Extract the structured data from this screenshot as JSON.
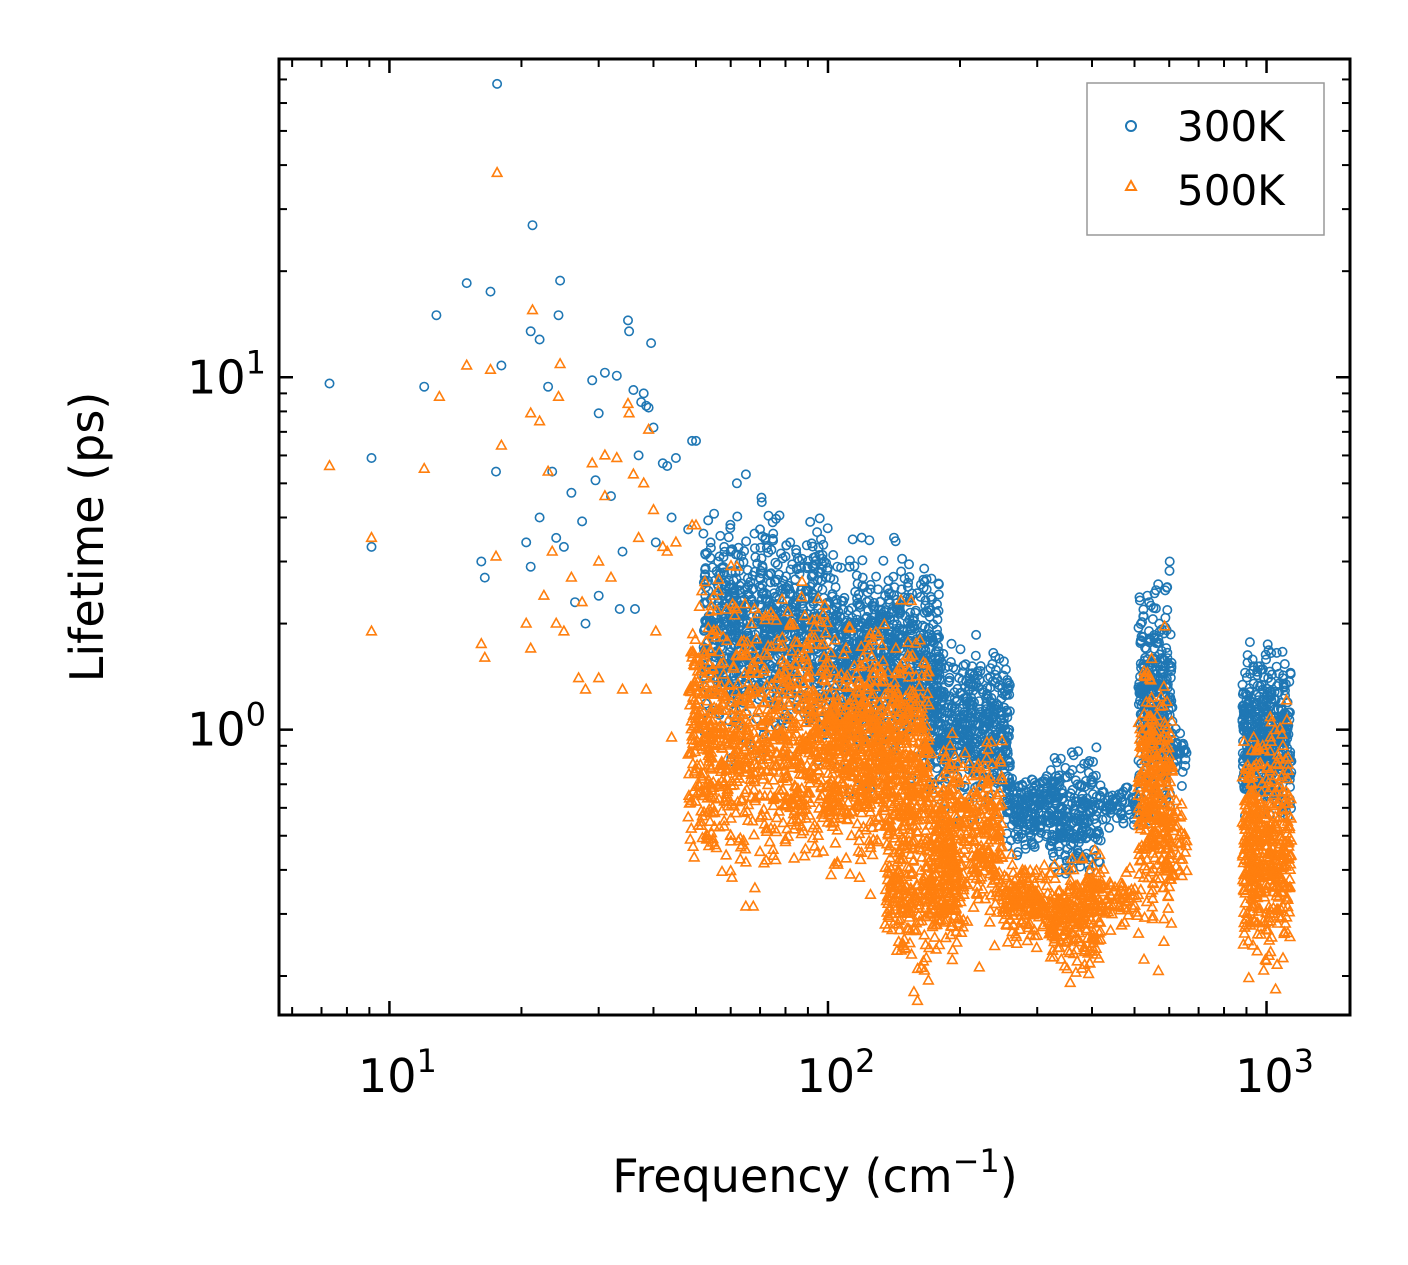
{
  "chart_data": {
    "type": "scatter",
    "xscale": "log",
    "yscale": "log",
    "xlim": [
      5.6,
      1550
    ],
    "ylim": [
      0.155,
      80
    ],
    "xlabel": {
      "base": "Frequency (cm",
      "sup": "−1",
      "tail": ")"
    },
    "ylabel": "Lifetime (ps)",
    "x_ticks": [
      {
        "value": 10,
        "base": "10",
        "exp": "1"
      },
      {
        "value": 100,
        "base": "10",
        "exp": "2"
      },
      {
        "value": 1000,
        "base": "10",
        "exp": "3"
      }
    ],
    "y_ticks": [
      {
        "value": 1,
        "base": "10",
        "exp": "0"
      },
      {
        "value": 10,
        "base": "10",
        "exp": "1"
      }
    ],
    "legend": {
      "position": "top-right"
    },
    "series": [
      {
        "name": "300K",
        "marker": "circle-open",
        "color": "#1f77b4",
        "outlier_points": [
          [
            7.3,
            9.6
          ],
          [
            9.1,
            5.9
          ],
          [
            9.1,
            3.3
          ],
          [
            12,
            9.4
          ],
          [
            12.8,
            15
          ],
          [
            15,
            18.5
          ],
          [
            16.2,
            3.0
          ],
          [
            16.5,
            2.7
          ],
          [
            17,
            17.5
          ],
          [
            17.5,
            5.4
          ],
          [
            17.6,
            68
          ],
          [
            18,
            10.8
          ],
          [
            20.5,
            3.4
          ],
          [
            21,
            13.5
          ],
          [
            21,
            2.9
          ],
          [
            21.2,
            27
          ],
          [
            22,
            12.8
          ],
          [
            22,
            4.0
          ],
          [
            23,
            9.4
          ],
          [
            23.5,
            5.4
          ],
          [
            24,
            3.5
          ],
          [
            24.3,
            15
          ],
          [
            24.5,
            18.8
          ],
          [
            25,
            3.3
          ],
          [
            26,
            4.7
          ],
          [
            26.5,
            2.3
          ],
          [
            27.5,
            3.9
          ],
          [
            28,
            2.0
          ],
          [
            29,
            9.8
          ],
          [
            29.5,
            5.1
          ],
          [
            30,
            2.4
          ],
          [
            30,
            7.9
          ],
          [
            31,
            10.3
          ],
          [
            32,
            4.6
          ],
          [
            33,
            10.1
          ],
          [
            33.5,
            2.2
          ],
          [
            34,
            3.2
          ],
          [
            35,
            14.5
          ],
          [
            35.2,
            13.5
          ],
          [
            36,
            9.2
          ],
          [
            36.3,
            2.2
          ],
          [
            37,
            6.0
          ],
          [
            37.5,
            8.5
          ],
          [
            38,
            9.0
          ],
          [
            38.5,
            8.3
          ],
          [
            39,
            8.2
          ],
          [
            39.5,
            12.5
          ],
          [
            40,
            7.2
          ],
          [
            40.5,
            3.4
          ],
          [
            42,
            5.7
          ],
          [
            43,
            5.6
          ],
          [
            44,
            4.0
          ],
          [
            45,
            5.9
          ],
          [
            48,
            3.7
          ],
          [
            49,
            6.6
          ],
          [
            50,
            6.6
          ],
          [
            52,
            3.6
          ],
          [
            54,
            3.4
          ],
          [
            55,
            4.1
          ],
          [
            58,
            3.3
          ],
          [
            60,
            3.2
          ],
          [
            62,
            5.0
          ],
          [
            65,
            5.3
          ],
          [
            68,
            3.6
          ],
          [
            70,
            3.7
          ],
          [
            72,
            3.5
          ],
          [
            75,
            3.6
          ],
          [
            80,
            3.1
          ],
          [
            82,
            3.4
          ],
          [
            90,
            2.9
          ],
          [
            95,
            2.8
          ],
          [
            98,
            3.0
          ],
          [
            105,
            2.9
          ],
          [
            112,
            2.9
          ],
          [
            120,
            2.7
          ],
          [
            125,
            2.5
          ],
          [
            130,
            2.5
          ],
          [
            135,
            2.4
          ],
          [
            140,
            2.2
          ],
          [
            150,
            2.1
          ],
          [
            155,
            2.0
          ],
          [
            162,
            1.8
          ],
          [
            165,
            1.7
          ],
          [
            180,
            1.6
          ],
          [
            193,
            1.5
          ],
          [
            210,
            1.4
          ],
          [
            225,
            1.3
          ],
          [
            235,
            1.2
          ],
          [
            250,
            1.1
          ],
          [
            535,
            2.4
          ],
          [
            540,
            2.3
          ],
          [
            545,
            2.25
          ],
          [
            905,
            1.55
          ],
          [
            935,
            1.35
          ],
          [
            980,
            1.3
          ],
          [
            1025,
            1.65
          ],
          [
            1090,
            1.4
          ]
        ],
        "clusters": [
          {
            "xmin": 52,
            "xmax": 100,
            "ycenter": 1.9,
            "spread": 0.42,
            "count": 900
          },
          {
            "xmin": 100,
            "xmax": 180,
            "ycenter": 1.55,
            "spread": 0.38,
            "count": 850
          },
          {
            "xmin": 170,
            "xmax": 260,
            "ycenter": 1.0,
            "spread": 0.3,
            "count": 500
          },
          {
            "xmin": 255,
            "xmax": 320,
            "ycenter": 0.6,
            "spread": 0.14,
            "count": 180
          },
          {
            "xmin": 320,
            "xmax": 420,
            "ycenter": 0.58,
            "spread": 0.22,
            "count": 250
          },
          {
            "xmin": 420,
            "xmax": 510,
            "ycenter": 0.6,
            "spread": 0.08,
            "count": 60
          },
          {
            "xmin": 510,
            "xmax": 610,
            "ycenter": 1.2,
            "spread": 0.45,
            "count": 320
          },
          {
            "xmin": 610,
            "xmax": 660,
            "ycenter": 0.88,
            "spread": 0.12,
            "count": 30
          },
          {
            "xmin": 880,
            "xmax": 1140,
            "ycenter": 0.95,
            "spread": 0.3,
            "count": 450
          }
        ]
      },
      {
        "name": "500K",
        "marker": "triangle-open",
        "color": "#ff7f0e",
        "outlier_points": [
          [
            7.3,
            5.6
          ],
          [
            9.1,
            3.5
          ],
          [
            9.1,
            1.9
          ],
          [
            12,
            5.5
          ],
          [
            13,
            8.8
          ],
          [
            15,
            10.8
          ],
          [
            16.2,
            1.75
          ],
          [
            16.5,
            1.6
          ],
          [
            17,
            10.5
          ],
          [
            17.5,
            3.1
          ],
          [
            17.6,
            38
          ],
          [
            18,
            6.4
          ],
          [
            20.5,
            2.0
          ],
          [
            21,
            7.9
          ],
          [
            21,
            1.7
          ],
          [
            21.2,
            15.5
          ],
          [
            22,
            7.5
          ],
          [
            22.5,
            2.4
          ],
          [
            23,
            5.4
          ],
          [
            23.5,
            3.2
          ],
          [
            24,
            2.0
          ],
          [
            24.3,
            8.8
          ],
          [
            24.5,
            10.9
          ],
          [
            25,
            1.9
          ],
          [
            26,
            2.7
          ],
          [
            27,
            1.4
          ],
          [
            27.5,
            2.3
          ],
          [
            28,
            1.3
          ],
          [
            29,
            5.7
          ],
          [
            30,
            3.0
          ],
          [
            30,
            1.4
          ],
          [
            31,
            4.6
          ],
          [
            31,
            6.0
          ],
          [
            32,
            2.7
          ],
          [
            33,
            5.9
          ],
          [
            34,
            1.3
          ],
          [
            35,
            8.4
          ],
          [
            35.2,
            7.9
          ],
          [
            36,
            5.3
          ],
          [
            37,
            3.5
          ],
          [
            38,
            5.0
          ],
          [
            38.5,
            1.3
          ],
          [
            39,
            7.1
          ],
          [
            40,
            4.2
          ],
          [
            40.5,
            1.9
          ],
          [
            42,
            3.3
          ],
          [
            43,
            3.2
          ],
          [
            44,
            0.95
          ],
          [
            45,
            3.4
          ],
          [
            48,
            0.85
          ],
          [
            49,
            3.8
          ],
          [
            50,
            3.8
          ],
          [
            52,
            0.75
          ],
          [
            54,
            0.65
          ],
          [
            55,
            2.4
          ],
          [
            58,
            0.55
          ],
          [
            60,
            0.5
          ],
          [
            62,
            2.9
          ],
          [
            65,
            0.42
          ],
          [
            68,
            2.2
          ],
          [
            70,
            0.45
          ],
          [
            72,
            2.1
          ],
          [
            75,
            2.1
          ],
          [
            80,
            0.48
          ],
          [
            82,
            2.0
          ],
          [
            90,
            1.7
          ],
          [
            95,
            0.5
          ],
          [
            98,
            1.75
          ],
          [
            105,
            0.42
          ],
          [
            110,
            1.7
          ],
          [
            118,
            0.38
          ],
          [
            120,
            1.6
          ],
          [
            125,
            0.34
          ],
          [
            130,
            1.5
          ],
          [
            135,
            0.28
          ],
          [
            140,
            0.27
          ],
          [
            145,
            0.25
          ],
          [
            150,
            0.24
          ],
          [
            155,
            0.23
          ],
          [
            157,
            0.18
          ],
          [
            160,
            0.17
          ],
          [
            165,
            0.22
          ],
          [
            170,
            0.24
          ],
          [
            190,
            0.9
          ],
          [
            210,
            0.8
          ],
          [
            230,
            0.7
          ],
          [
            300,
            0.26
          ],
          [
            340,
            0.25
          ],
          [
            370,
            0.22
          ],
          [
            385,
            0.215
          ],
          [
            420,
            0.32
          ],
          [
            535,
            1.45
          ],
          [
            540,
            1.42
          ],
          [
            545,
            1.38
          ],
          [
            640,
            0.57
          ],
          [
            935,
            0.95
          ],
          [
            980,
            0.9
          ],
          [
            1025,
            1.05
          ],
          [
            1090,
            0.9
          ]
        ],
        "clusters": [
          {
            "xmin": 48,
            "xmax": 100,
            "ycenter": 0.95,
            "spread": 0.5,
            "count": 900
          },
          {
            "xmin": 100,
            "xmax": 170,
            "ycenter": 0.85,
            "spread": 0.45,
            "count": 850
          },
          {
            "xmin": 135,
            "xmax": 200,
            "ycenter": 0.36,
            "spread": 0.28,
            "count": 300
          },
          {
            "xmin": 170,
            "xmax": 250,
            "ycenter": 0.5,
            "spread": 0.35,
            "count": 400
          },
          {
            "xmin": 250,
            "xmax": 320,
            "ycenter": 0.32,
            "spread": 0.16,
            "count": 180
          },
          {
            "xmin": 320,
            "xmax": 420,
            "ycenter": 0.3,
            "spread": 0.22,
            "count": 250
          },
          {
            "xmin": 420,
            "xmax": 510,
            "ycenter": 0.33,
            "spread": 0.1,
            "count": 60
          },
          {
            "xmin": 510,
            "xmax": 610,
            "ycenter": 0.62,
            "spread": 0.5,
            "count": 320
          },
          {
            "xmin": 610,
            "xmax": 660,
            "ycenter": 0.5,
            "spread": 0.15,
            "count": 30
          },
          {
            "xmin": 880,
            "xmax": 1140,
            "ycenter": 0.45,
            "spread": 0.45,
            "count": 450
          }
        ]
      }
    ]
  }
}
